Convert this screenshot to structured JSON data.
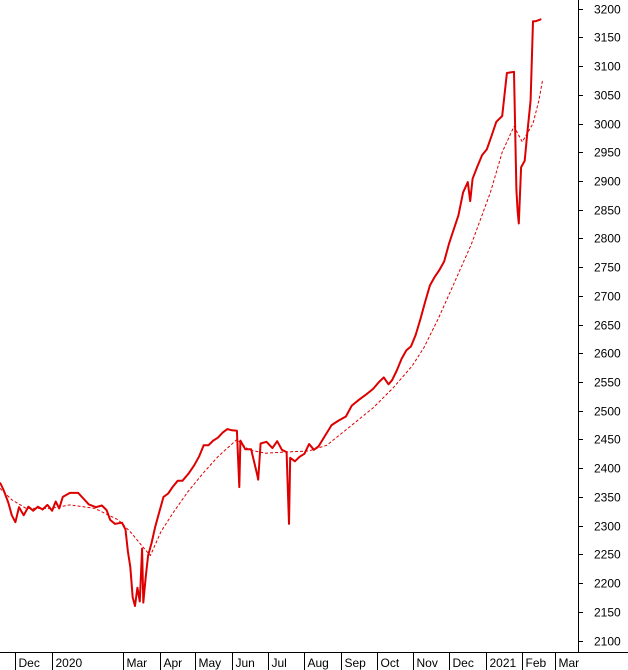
{
  "chart_data": {
    "type": "line",
    "title": "",
    "xlabel": "",
    "ylabel": "",
    "ylim": [
      2080,
      3215
    ],
    "y_ticks": [
      2100,
      2150,
      2200,
      2250,
      2300,
      2350,
      2400,
      2450,
      2500,
      2550,
      2600,
      2650,
      2700,
      2750,
      2800,
      2850,
      2900,
      2950,
      3000,
      3050,
      3100,
      3150,
      3200
    ],
    "x_ticks": [
      {
        "label": "Dec",
        "date": "2019-12-01"
      },
      {
        "label": "2020",
        "date": "2020-01-01"
      },
      {
        "label": "Mar",
        "date": "2020-03-01"
      },
      {
        "label": "Apr",
        "date": "2020-04-01"
      },
      {
        "label": "May",
        "date": "2020-05-01"
      },
      {
        "label": "Jun",
        "date": "2020-06-01"
      },
      {
        "label": "Jul",
        "date": "2020-07-01"
      },
      {
        "label": "Aug",
        "date": "2020-08-01"
      },
      {
        "label": "Sep",
        "date": "2020-09-01"
      },
      {
        "label": "Oct",
        "date": "2020-10-01"
      },
      {
        "label": "Nov",
        "date": "2020-11-01"
      },
      {
        "label": "Dec",
        "date": "2020-12-01"
      },
      {
        "label": "2021",
        "date": "2021-01-01"
      },
      {
        "label": "Feb",
        "date": "2021-02-01"
      },
      {
        "label": "Mar",
        "date": "2021-03-01"
      }
    ],
    "xlim": [
      "2019-11-18",
      "2021-03-20"
    ],
    "axis_position": "right",
    "grid": false,
    "series": [
      {
        "style": "solid",
        "color": "#dd0000",
        "points": [
          [
            "2019-11-18",
            2375
          ],
          [
            "2019-11-21",
            2362
          ],
          [
            "2019-11-25",
            2340
          ],
          [
            "2019-11-28",
            2318
          ],
          [
            "2019-12-01",
            2306
          ],
          [
            "2019-12-04",
            2332
          ],
          [
            "2019-12-08",
            2318
          ],
          [
            "2019-12-12",
            2333
          ],
          [
            "2019-12-16",
            2326
          ],
          [
            "2019-12-20",
            2333
          ],
          [
            "2019-12-24",
            2328
          ],
          [
            "2019-12-28",
            2336
          ],
          [
            "2020-01-01",
            2326
          ],
          [
            "2020-01-04",
            2342
          ],
          [
            "2020-01-07",
            2330
          ],
          [
            "2020-01-10",
            2350
          ],
          [
            "2020-01-16",
            2357
          ],
          [
            "2020-01-23",
            2357
          ],
          [
            "2020-01-27",
            2348
          ],
          [
            "2020-02-01",
            2337
          ],
          [
            "2020-02-07",
            2332
          ],
          [
            "2020-02-12",
            2335
          ],
          [
            "2020-02-16",
            2327
          ],
          [
            "2020-02-19",
            2310
          ],
          [
            "2020-02-23",
            2303
          ],
          [
            "2020-02-29",
            2305
          ],
          [
            "2020-03-03",
            2293
          ],
          [
            "2020-03-05",
            2255
          ],
          [
            "2020-03-07",
            2228
          ],
          [
            "2020-03-09",
            2175
          ],
          [
            "2020-03-11",
            2160
          ],
          [
            "2020-03-13",
            2192
          ],
          [
            "2020-03-15",
            2168
          ],
          [
            "2020-03-17",
            2260
          ],
          [
            "2020-03-18",
            2166
          ],
          [
            "2020-03-20",
            2210
          ],
          [
            "2020-03-22",
            2248
          ],
          [
            "2020-03-25",
            2270
          ],
          [
            "2020-03-28",
            2298
          ],
          [
            "2020-03-31",
            2320
          ],
          [
            "2020-04-04",
            2350
          ],
          [
            "2020-04-08",
            2356
          ],
          [
            "2020-04-12",
            2368
          ],
          [
            "2020-04-16",
            2378
          ],
          [
            "2020-04-20",
            2378
          ],
          [
            "2020-04-25",
            2390
          ],
          [
            "2020-04-30",
            2405
          ],
          [
            "2020-05-04",
            2420
          ],
          [
            "2020-05-08",
            2440
          ],
          [
            "2020-05-12",
            2440
          ],
          [
            "2020-05-16",
            2448
          ],
          [
            "2020-05-20",
            2453
          ],
          [
            "2020-05-24",
            2462
          ],
          [
            "2020-05-28",
            2468
          ],
          [
            "2020-06-01",
            2466
          ],
          [
            "2020-06-05",
            2465
          ],
          [
            "2020-06-07",
            2367
          ],
          [
            "2020-06-08",
            2448
          ],
          [
            "2020-06-12",
            2433
          ],
          [
            "2020-06-17",
            2433
          ],
          [
            "2020-06-22",
            2390
          ],
          [
            "2020-06-23",
            2380
          ],
          [
            "2020-06-25",
            2443
          ],
          [
            "2020-06-30",
            2446
          ],
          [
            "2020-07-05",
            2435
          ],
          [
            "2020-07-09",
            2447
          ],
          [
            "2020-07-13",
            2432
          ],
          [
            "2020-07-17",
            2428
          ],
          [
            "2020-07-19",
            2303
          ],
          [
            "2020-07-20",
            2418
          ],
          [
            "2020-07-24",
            2412
          ],
          [
            "2020-07-28",
            2420
          ],
          [
            "2020-08-01",
            2425
          ],
          [
            "2020-08-05",
            2442
          ],
          [
            "2020-08-09",
            2432
          ],
          [
            "2020-08-13",
            2438
          ],
          [
            "2020-08-18",
            2455
          ],
          [
            "2020-08-24",
            2475
          ],
          [
            "2020-08-30",
            2483
          ],
          [
            "2020-09-05",
            2490
          ],
          [
            "2020-09-10",
            2509
          ],
          [
            "2020-09-16",
            2519
          ],
          [
            "2020-09-22",
            2528
          ],
          [
            "2020-09-28",
            2538
          ],
          [
            "2020-10-03",
            2550
          ],
          [
            "2020-10-07",
            2558
          ],
          [
            "2020-10-11",
            2546
          ],
          [
            "2020-10-14",
            2553
          ],
          [
            "2020-10-18",
            2570
          ],
          [
            "2020-10-22",
            2590
          ],
          [
            "2020-10-26",
            2605
          ],
          [
            "2020-10-30",
            2612
          ],
          [
            "2020-11-03",
            2632
          ],
          [
            "2020-11-07",
            2660
          ],
          [
            "2020-11-11",
            2690
          ],
          [
            "2020-11-15",
            2718
          ],
          [
            "2020-11-19",
            2733
          ],
          [
            "2020-11-23",
            2745
          ],
          [
            "2020-11-27",
            2760
          ],
          [
            "2020-12-01",
            2790
          ],
          [
            "2020-12-05",
            2815
          ],
          [
            "2020-12-09",
            2840
          ],
          [
            "2020-12-13",
            2880
          ],
          [
            "2020-12-17",
            2898
          ],
          [
            "2020-12-19",
            2865
          ],
          [
            "2020-12-21",
            2904
          ],
          [
            "2020-12-25",
            2925
          ],
          [
            "2020-12-29",
            2945
          ],
          [
            "2021-01-02",
            2955
          ],
          [
            "2021-01-06",
            2978
          ],
          [
            "2021-01-10",
            3003
          ],
          [
            "2021-01-15",
            3013
          ],
          [
            "2021-01-19",
            3088
          ],
          [
            "2021-01-25",
            3090
          ],
          [
            "2021-01-27",
            2885
          ],
          [
            "2021-01-28",
            2848
          ],
          [
            "2021-01-29",
            2826
          ],
          [
            "2021-01-31",
            2924
          ],
          [
            "2021-02-03",
            2935
          ],
          [
            "2021-02-05",
            2980
          ],
          [
            "2021-02-08",
            3040
          ],
          [
            "2021-02-10",
            3178
          ],
          [
            "2021-02-12",
            3178
          ],
          [
            "2021-02-15",
            3180
          ],
          [
            "2021-02-17",
            3182
          ]
        ]
      },
      {
        "style": "dashed",
        "color": "#dd0000",
        "points": [
          [
            "2019-11-18",
            2365
          ],
          [
            "2019-11-28",
            2345
          ],
          [
            "2019-12-10",
            2330
          ],
          [
            "2019-12-31",
            2330
          ],
          [
            "2020-01-16",
            2336
          ],
          [
            "2020-02-06",
            2330
          ],
          [
            "2020-02-26",
            2310
          ],
          [
            "2020-03-08",
            2287
          ],
          [
            "2020-03-18",
            2262
          ],
          [
            "2020-03-24",
            2248
          ],
          [
            "2020-04-02",
            2290
          ],
          [
            "2020-04-13",
            2325
          ],
          [
            "2020-04-25",
            2360
          ],
          [
            "2020-05-07",
            2390
          ],
          [
            "2020-05-20",
            2420
          ],
          [
            "2020-06-05",
            2450
          ],
          [
            "2020-06-15",
            2432
          ],
          [
            "2020-06-29",
            2426
          ],
          [
            "2020-07-15",
            2428
          ],
          [
            "2020-08-05",
            2430
          ],
          [
            "2020-08-20",
            2440
          ],
          [
            "2020-09-10",
            2475
          ],
          [
            "2020-09-28",
            2505
          ],
          [
            "2020-10-15",
            2540
          ],
          [
            "2020-10-31",
            2578
          ],
          [
            "2020-11-10",
            2610
          ],
          [
            "2020-11-22",
            2660
          ],
          [
            "2020-12-05",
            2720
          ],
          [
            "2020-12-20",
            2790
          ],
          [
            "2021-01-05",
            2880
          ],
          [
            "2021-01-15",
            2950
          ],
          [
            "2021-01-25",
            2995
          ],
          [
            "2021-02-01",
            2968
          ],
          [
            "2021-02-10",
            3000
          ],
          [
            "2021-02-15",
            3040
          ],
          [
            "2021-02-18",
            3075
          ]
        ]
      }
    ]
  }
}
